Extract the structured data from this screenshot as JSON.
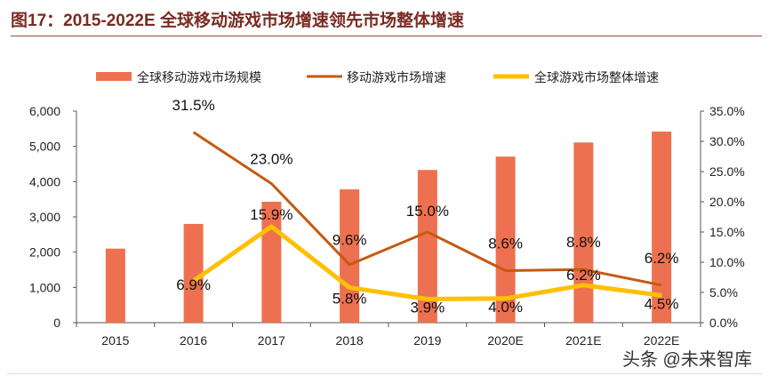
{
  "title": "图17：2015-2022E 全球移动游戏市场增速领先市场整体增速",
  "watermark": "头条 @未来智库",
  "chart_data": {
    "type": "bar+line",
    "categories": [
      "2015",
      "2016",
      "2017",
      "2018",
      "2019",
      "2020E",
      "2021E",
      "2022E"
    ],
    "series": [
      {
        "name": "全球移动游戏市场规模",
        "type": "bar",
        "axis": "left",
        "color": "#ed7150",
        "values": [
          2100,
          2800,
          3430,
          3780,
          4330,
          4710,
          5110,
          5420
        ]
      },
      {
        "name": "移动游戏市场增速",
        "type": "line",
        "axis": "right",
        "color": "#c55a11",
        "values": [
          null,
          31.5,
          23.0,
          9.6,
          15.0,
          8.6,
          8.8,
          6.2
        ],
        "labels": [
          "",
          "31.5%",
          "23.0%",
          "9.6%",
          "15.0%",
          "8.6%",
          "8.8%",
          "6.2%"
        ]
      },
      {
        "name": "全球游戏市场整体增速",
        "type": "line",
        "axis": "right",
        "color": "#ffc000",
        "values": [
          null,
          6.9,
          15.9,
          5.8,
          3.9,
          4.0,
          6.2,
          4.5
        ],
        "labels": [
          "",
          "6.9%",
          "15.9%",
          "5.8%",
          "3.9%",
          "4.0%",
          "6.2%",
          "4.5%"
        ]
      }
    ],
    "left_axis": {
      "ylim": [
        0,
        6000
      ],
      "ticks": [
        "0",
        "1,000",
        "2,000",
        "3,000",
        "4,000",
        "5,000",
        "6,000"
      ]
    },
    "right_axis": {
      "ylim": [
        0,
        35
      ],
      "ticks": [
        "0.0%",
        "5.0%",
        "10.0%",
        "15.0%",
        "20.0%",
        "25.0%",
        "30.0%",
        "35.0%"
      ]
    },
    "legend": "top",
    "grid": false
  }
}
